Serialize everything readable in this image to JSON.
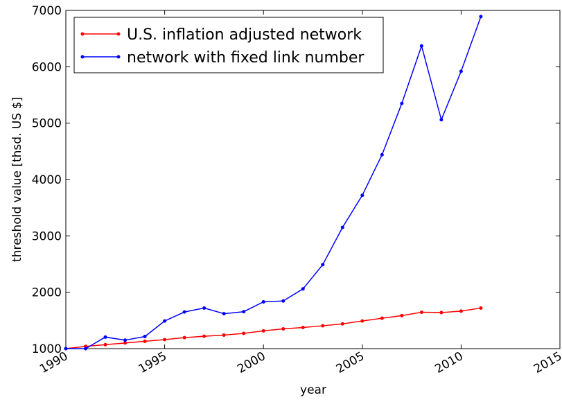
{
  "chart_data": {
    "type": "line",
    "x_label": "year",
    "y_label": "threshold value [thsd. US $]",
    "x": [
      1990,
      1991,
      1992,
      1993,
      1994,
      1995,
      1996,
      1997,
      1998,
      1999,
      2000,
      2001,
      2002,
      2003,
      2004,
      2005,
      2006,
      2007,
      2008,
      2009,
      2010,
      2011
    ],
    "series": [
      {
        "name": "U.S. inflation adjusted network",
        "color": "#ff0000",
        "values": [
          1000,
          1040,
          1070,
          1100,
          1130,
          1160,
          1195,
          1220,
          1240,
          1270,
          1315,
          1350,
          1375,
          1405,
          1440,
          1490,
          1540,
          1585,
          1645,
          1640,
          1665,
          1720
        ]
      },
      {
        "name": "network with fixed link number",
        "color": "#0000ff",
        "values": [
          1000,
          1000,
          1205,
          1150,
          1215,
          1490,
          1650,
          1720,
          1620,
          1655,
          1830,
          1845,
          2060,
          2490,
          3150,
          3720,
          4440,
          5350,
          6370,
          5060,
          5920,
          6890
        ]
      }
    ],
    "xlim": [
      1990,
      2015
    ],
    "xticks": [
      1990,
      1995,
      2000,
      2005,
      2010,
      2015
    ],
    "ylim": [
      1000,
      7000
    ],
    "yticks": [
      1000,
      2000,
      3000,
      4000,
      5000,
      6000,
      7000
    ],
    "grid": false,
    "legend": "upper left"
  }
}
